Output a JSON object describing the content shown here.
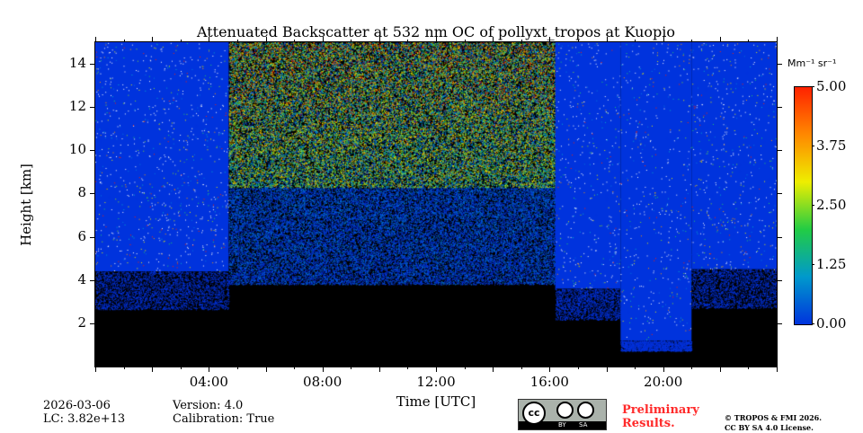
{
  "chart_data": {
    "type": "heatmap",
    "title": "Attenuated Backscatter at 532 nm OC of pollyxt_tropos at Kuopio",
    "xlabel": "Time [UTC]",
    "ylabel": "Height [km]",
    "xlim_hours": [
      0,
      24
    ],
    "ylim_km": [
      0,
      15
    ],
    "xticks": [
      "04:00",
      "08:00",
      "12:00",
      "16:00",
      "20:00"
    ],
    "xtick_hours": [
      4,
      8,
      12,
      16,
      20
    ],
    "yticks": [
      "2",
      "4",
      "6",
      "8",
      "10",
      "12",
      "14"
    ],
    "ytick_values": [
      2,
      4,
      6,
      8,
      10,
      12,
      14
    ],
    "colorbar": {
      "unit": "Mm⁻¹ sr⁻¹",
      "ticks": [
        "0.00",
        "1.25",
        "2.50",
        "3.75",
        "5.00"
      ],
      "tick_values": [
        0,
        1.25,
        2.5,
        3.75,
        5
      ],
      "range": [
        0,
        5
      ]
    },
    "segments": [
      {
        "start_h": 0,
        "end_h": 4.7,
        "kind": "clear",
        "base_km": 4.4
      },
      {
        "start_h": 4.7,
        "end_h": 16.2,
        "kind": "noisy",
        "base_km": 3.8
      },
      {
        "start_h": 16.2,
        "end_h": 18.5,
        "kind": "clear",
        "base_km": 3.6
      },
      {
        "start_h": 18.5,
        "end_h": 21,
        "kind": "clear",
        "base_km": 1.2
      },
      {
        "start_h": 21,
        "end_h": 24,
        "kind": "clear",
        "base_km": 4.5
      }
    ],
    "colors": {
      "low": "#0033dd",
      "mid": "#22cc44",
      "high": "#ff2200",
      "nodata": "#000000"
    }
  },
  "meta": {
    "date": "2026-03-06",
    "lc": "LC: 3.82e+13",
    "version": "Version: 4.0",
    "calibration": "Calibration: True"
  },
  "license": {
    "cc": "cc",
    "by": "BY",
    "sa": "SA",
    "prelim1": "Preliminary",
    "prelim2": "Results.",
    "copy1": "© TROPOS & FMI 2026.",
    "copy2": "CC BY SA 4.0 License."
  }
}
